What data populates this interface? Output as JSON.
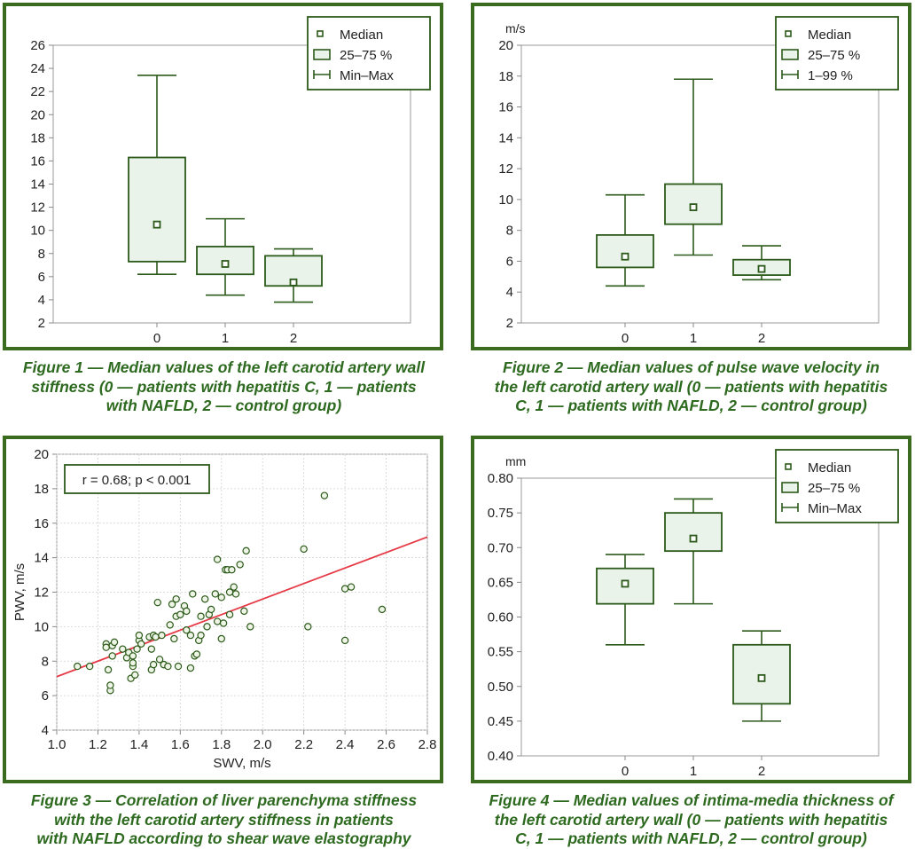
{
  "colors": {
    "frame": "#3b6b1f",
    "box_fill": "#e9f3ea",
    "box_stroke": "#2c5a1a",
    "caption": "#2d6a1f",
    "point_fill": "#eef5e6",
    "fit_line": "#e63946"
  },
  "chart_data": [
    {
      "type": "box",
      "unit": "",
      "categories": [
        "0",
        "1",
        "2"
      ],
      "yticks": [
        "2",
        "4",
        "6",
        "8",
        "10",
        "12",
        "14",
        "16",
        "18",
        "20",
        "22",
        "24",
        "26"
      ],
      "ylim": [
        2,
        26
      ],
      "legend": {
        "median": "Median",
        "box": "25–75 %",
        "whisker": "Min–Max"
      },
      "boxes": [
        {
          "median": 10.5,
          "q1": 7.3,
          "q3": 16.3,
          "min": 6.2,
          "max": 23.4
        },
        {
          "median": 7.1,
          "q1": 6.2,
          "q3": 8.6,
          "min": 4.4,
          "max": 11.0
        },
        {
          "median": 5.5,
          "q1": 5.2,
          "q3": 7.8,
          "min": 3.8,
          "max": 8.4
        }
      ],
      "caption": [
        "Figure 1 — Median values of the left carotid artery wall",
        "stiffness (0 — patients with hepatitis C, 1 — patients",
        "with NAFLD, 2 — control group)"
      ]
    },
    {
      "type": "box",
      "unit": "m/s",
      "categories": [
        "0",
        "1",
        "2"
      ],
      "yticks": [
        "2",
        "4",
        "6",
        "8",
        "10",
        "12",
        "14",
        "16",
        "18",
        "20"
      ],
      "ylim": [
        2,
        20
      ],
      "legend": {
        "median": "Median",
        "box": "25–75 %",
        "whisker": "1–99 %"
      },
      "boxes": [
        {
          "median": 6.3,
          "q1": 5.6,
          "q3": 7.7,
          "min": 4.4,
          "max": 10.3
        },
        {
          "median": 9.5,
          "q1": 8.4,
          "q3": 11.0,
          "min": 6.4,
          "max": 17.8
        },
        {
          "median": 5.5,
          "q1": 5.1,
          "q3": 6.1,
          "min": 4.8,
          "max": 7.0
        }
      ],
      "caption": [
        "Figure 2 — Median values of pulse wave velocity in",
        "the left carotid artery wall (0 — patients with hepatitis",
        "C, 1 — patients with NAFLD, 2 — control group)"
      ]
    },
    {
      "type": "scatter",
      "xlabel": "SWV, m/s",
      "ylabel": "PWV, m/s",
      "xticks": [
        "1.0",
        "1.2",
        "1.4",
        "1.6",
        "1.8",
        "2.0",
        "2.2",
        "2.4",
        "2.6",
        "2.8"
      ],
      "yticks": [
        "4",
        "6",
        "8",
        "10",
        "12",
        "14",
        "16",
        "18",
        "20"
      ],
      "xlim": [
        1.0,
        2.8
      ],
      "ylim": [
        4,
        20
      ],
      "annotation": "r = 0.68; p < 0.001",
      "fit_line": {
        "x": [
          1.0,
          2.8
        ],
        "y": [
          7.1,
          15.2
        ]
      },
      "points": [
        [
          1.1,
          7.7
        ],
        [
          1.16,
          7.7
        ],
        [
          1.24,
          9.0
        ],
        [
          1.24,
          8.8
        ],
        [
          1.25,
          7.5
        ],
        [
          1.26,
          6.3
        ],
        [
          1.26,
          6.6
        ],
        [
          1.27,
          8.9
        ],
        [
          1.27,
          8.3
        ],
        [
          1.28,
          9.1
        ],
        [
          1.32,
          8.7
        ],
        [
          1.34,
          8.2
        ],
        [
          1.35,
          8.5
        ],
        [
          1.36,
          7.0
        ],
        [
          1.37,
          7.7
        ],
        [
          1.37,
          7.9
        ],
        [
          1.37,
          8.3
        ],
        [
          1.38,
          7.2
        ],
        [
          1.39,
          8.7
        ],
        [
          1.4,
          9.2
        ],
        [
          1.4,
          9.5
        ],
        [
          1.41,
          9.0
        ],
        [
          1.45,
          9.4
        ],
        [
          1.46,
          8.7
        ],
        [
          1.46,
          7.5
        ],
        [
          1.47,
          9.5
        ],
        [
          1.47,
          7.8
        ],
        [
          1.48,
          9.4
        ],
        [
          1.49,
          11.4
        ],
        [
          1.5,
          8.1
        ],
        [
          1.51,
          9.5
        ],
        [
          1.52,
          7.8
        ],
        [
          1.52,
          7.8
        ],
        [
          1.54,
          7.7
        ],
        [
          1.55,
          10.1
        ],
        [
          1.56,
          11.3
        ],
        [
          1.57,
          9.3
        ],
        [
          1.58,
          10.6
        ],
        [
          1.58,
          11.6
        ],
        [
          1.59,
          7.7
        ],
        [
          1.6,
          10.7
        ],
        [
          1.62,
          11.2
        ],
        [
          1.63,
          10.9
        ],
        [
          1.63,
          9.8
        ],
        [
          1.65,
          9.5
        ],
        [
          1.65,
          7.6
        ],
        [
          1.66,
          11.9
        ],
        [
          1.67,
          8.3
        ],
        [
          1.68,
          8.4
        ],
        [
          1.69,
          9.2
        ],
        [
          1.7,
          9.5
        ],
        [
          1.7,
          10.6
        ],
        [
          1.72,
          11.6
        ],
        [
          1.73,
          10.0
        ],
        [
          1.74,
          10.7
        ],
        [
          1.75,
          11.0
        ],
        [
          1.77,
          11.9
        ],
        [
          1.78,
          13.9
        ],
        [
          1.78,
          10.3
        ],
        [
          1.8,
          11.7
        ],
        [
          1.8,
          9.3
        ],
        [
          1.81,
          10.2
        ],
        [
          1.82,
          13.3
        ],
        [
          1.83,
          13.3
        ],
        [
          1.84,
          10.7
        ],
        [
          1.84,
          12.0
        ],
        [
          1.85,
          13.3
        ],
        [
          1.86,
          12.3
        ],
        [
          1.87,
          11.9
        ],
        [
          1.89,
          13.6
        ],
        [
          1.91,
          10.9
        ],
        [
          1.92,
          14.4
        ],
        [
          1.94,
          10.0
        ],
        [
          2.2,
          14.5
        ],
        [
          2.22,
          10.0
        ],
        [
          2.3,
          17.6
        ],
        [
          2.4,
          9.2
        ],
        [
          2.4,
          12.2
        ],
        [
          2.43,
          12.3
        ],
        [
          2.58,
          11.0
        ]
      ],
      "caption": [
        "Figure 3 — Correlation of liver parenchyma stiffness",
        "with the left carotid artery stiffness in patients",
        "with NAFLD according to shear wave elastography"
      ]
    },
    {
      "type": "box",
      "unit": "mm",
      "categories": [
        "0",
        "1",
        "2"
      ],
      "yticks": [
        "0.40",
        "0.45",
        "0.50",
        "0.55",
        "0.60",
        "0.65",
        "0.70",
        "0.75",
        "0.80"
      ],
      "ylim": [
        0.4,
        0.8
      ],
      "legend": {
        "median": "Median",
        "box": "25–75 %",
        "whisker": "Min–Max"
      },
      "boxes": [
        {
          "median": 0.648,
          "q1": 0.619,
          "q3": 0.67,
          "min": 0.56,
          "max": 0.69
        },
        {
          "median": 0.713,
          "q1": 0.695,
          "q3": 0.75,
          "min": 0.619,
          "max": 0.77
        },
        {
          "median": 0.512,
          "q1": 0.475,
          "q3": 0.56,
          "min": 0.45,
          "max": 0.58
        }
      ],
      "caption": [
        "Figure 4 — Median values of intima-media thickness of",
        "the left carotid artery wall (0 — patients with hepatitis",
        "C, 1 — patients with NAFLD, 2 — control group)"
      ]
    }
  ]
}
